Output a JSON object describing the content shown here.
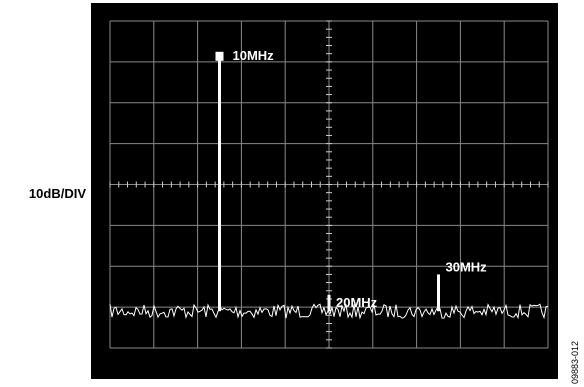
{
  "chart_data": {
    "type": "line",
    "scale_label": "10dB/DIV",
    "grid": true,
    "grid_divisions": {
      "x": 10,
      "y": 8
    },
    "noise_floor_div": 0.9,
    "peaks": [
      {
        "label": "10MHz",
        "x_div": 2.5,
        "height_div": 7.1,
        "marker": true
      },
      {
        "label": "20MHz",
        "x_div": 5.0,
        "height_div": 1.3,
        "marker": false
      },
      {
        "label": "30MHz",
        "x_div": 7.5,
        "height_div": 1.8,
        "marker": false
      }
    ],
    "figure_code": "09883-012"
  },
  "colors": {
    "screen": "#000000",
    "trace": "#ffffff",
    "grid": "#8a8a8a"
  }
}
